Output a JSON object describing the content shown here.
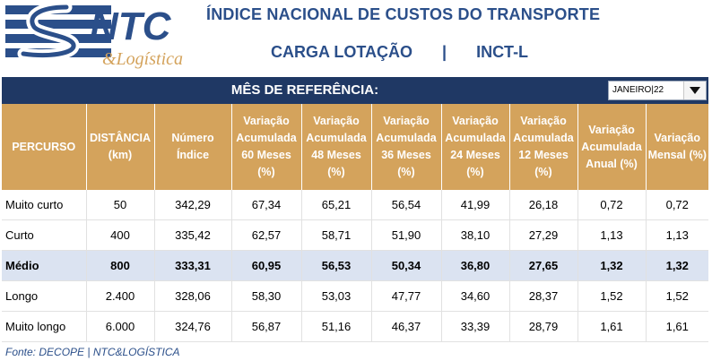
{
  "header": {
    "logo_text": "NTC",
    "logo_script": "&Logística",
    "title": "ÍNDICE NACIONAL DE CUSTOS DO TRANSPORTE",
    "subtitle_left": "CARGA LOTAÇÃO",
    "subtitle_separator": "|",
    "subtitle_right": "INCT-L"
  },
  "reference": {
    "label": "MÊS DE REFERÊNCIA:",
    "selected_month": "JANEIRO|22"
  },
  "table": {
    "headers": [
      "PERCURSO",
      "DISTÂNCIA (km)",
      "Número Índice",
      "Variação Acumulada 60 Meses (%)",
      "Variação Acumulada 48 Meses (%)",
      "Variação Acumulada 36 Meses (%)",
      "Variação Acumulada 24 Meses (%)",
      "Variação Acumulada 12 Meses (%)",
      "Variação Acumulada Anual (%)",
      "Variação Mensal (%)"
    ],
    "rows": [
      [
        "Muito curto",
        "50",
        "342,29",
        "67,34",
        "65,21",
        "56,54",
        "41,99",
        "26,18",
        "0,72",
        "0,72"
      ],
      [
        "Curto",
        "400",
        "335,42",
        "62,57",
        "58,71",
        "51,90",
        "38,10",
        "27,29",
        "1,13",
        "1,13"
      ],
      [
        "Médio",
        "800",
        "333,31",
        "60,95",
        "56,53",
        "50,34",
        "36,80",
        "27,65",
        "1,32",
        "1,32"
      ],
      [
        "Longo",
        "2.400",
        "328,06",
        "58,30",
        "53,03",
        "47,77",
        "34,60",
        "28,37",
        "1,52",
        "1,52"
      ],
      [
        "Muito longo",
        "6.000",
        "324,76",
        "56,87",
        "51,16",
        "46,37",
        "33,39",
        "28,79",
        "1,61",
        "1,61"
      ]
    ],
    "highlighted_row": 2
  },
  "footer": {
    "source": "Fonte: DECOPE | NTC&LOGÍSTICA"
  },
  "colors": {
    "navy": "#1f3864",
    "gold": "#d4a35c",
    "title_blue": "#2b4f8a",
    "highlight": "#dbe3f1"
  }
}
